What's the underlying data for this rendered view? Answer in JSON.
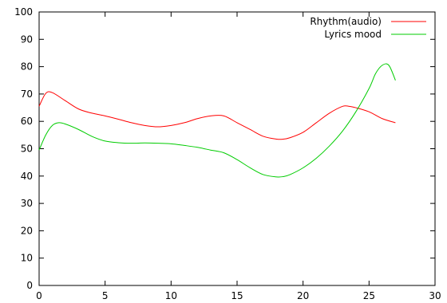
{
  "chart_data": {
    "type": "line",
    "title": "",
    "xlabel": "",
    "ylabel": "",
    "xlim": [
      0,
      30
    ],
    "ylim": [
      0,
      100
    ],
    "x_ticks": [
      0,
      5,
      10,
      15,
      20,
      25,
      30
    ],
    "y_ticks": [
      0,
      10,
      20,
      30,
      40,
      50,
      60,
      70,
      80,
      90,
      100
    ],
    "grid": false,
    "legend_position": "top-right",
    "series": [
      {
        "name": "Rhythm(audio)",
        "color": "#ff0000",
        "x": [
          0,
          0.5,
          1,
          2,
          3,
          4,
          5,
          6,
          7,
          8,
          9,
          10,
          11,
          12,
          13,
          14,
          15,
          16,
          17,
          18,
          18.5,
          19,
          20,
          21,
          22,
          23,
          23.5,
          24,
          25,
          26,
          27
        ],
        "values": [
          65.5,
          70.2,
          70.5,
          67.5,
          64.5,
          63,
          62,
          60.8,
          59.5,
          58.5,
          58,
          58.5,
          59.5,
          61,
          62,
          62,
          59.5,
          57,
          54.5,
          53.5,
          53.5,
          54,
          56,
          59.5,
          63,
          65.5,
          65.5,
          65,
          63.5,
          61,
          59.5
        ]
      },
      {
        "name": "Lyrics mood",
        "color": "#00cc00",
        "x": [
          0,
          0.5,
          1,
          1.5,
          2,
          3,
          4,
          5,
          6,
          7,
          8,
          9,
          10,
          11,
          12,
          13,
          14,
          15,
          16,
          17,
          18,
          18.5,
          19,
          20,
          21,
          22,
          23,
          24,
          25,
          25.5,
          26,
          26.5,
          27
        ],
        "values": [
          49.5,
          55,
          58.5,
          59.5,
          59,
          57,
          54.5,
          52.8,
          52.2,
          52,
          52.1,
          52,
          51.8,
          51.2,
          50.5,
          49.5,
          48.5,
          46,
          43,
          40.5,
          39.7,
          39.8,
          40.5,
          43,
          46.5,
          51,
          56.5,
          63.5,
          72,
          77.5,
          80.5,
          80.5,
          75
        ]
      }
    ]
  }
}
